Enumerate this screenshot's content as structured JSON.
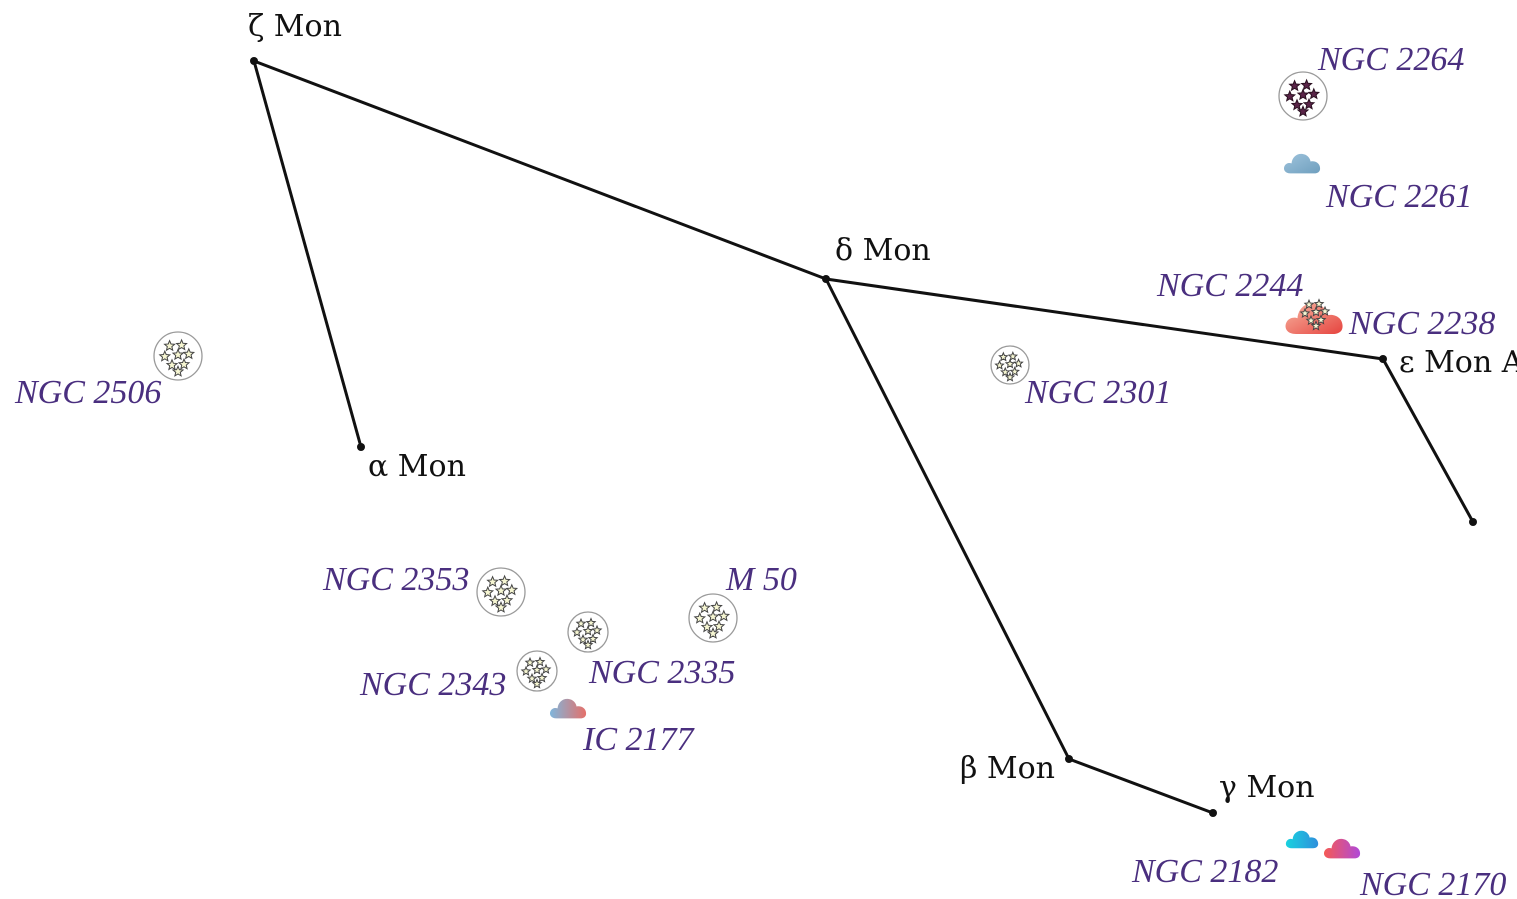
{
  "stars": [
    {
      "id": "zeta",
      "label": "ζ Mon"
    },
    {
      "id": "alpha",
      "label": "α Mon"
    },
    {
      "id": "delta",
      "label": "δ Mon"
    },
    {
      "id": "epsilon",
      "label": "ε Mon A"
    },
    {
      "id": "beta",
      "label": "β Mon"
    },
    {
      "id": "gamma",
      "label": "γ Mon"
    },
    {
      "id": "end",
      "label": ""
    }
  ],
  "deep_sky_objects": [
    {
      "id": "ngc2264",
      "label": "NGC 2264",
      "type": "open-cluster",
      "color": "#5a2448"
    },
    {
      "id": "ngc2261",
      "label": "NGC 2261",
      "type": "nebula",
      "colors": [
        "#8fb8d4",
        "#6fa0bf"
      ]
    },
    {
      "id": "ngc2244",
      "label": "NGC 2244",
      "type": "cluster-with-nebula"
    },
    {
      "id": "ngc2238",
      "label": "NGC 2238",
      "type": "nebula",
      "colors": [
        "#f4a08c",
        "#e84a4a"
      ]
    },
    {
      "id": "ngc2301",
      "label": "NGC 2301",
      "type": "open-cluster"
    },
    {
      "id": "ngc2506",
      "label": "NGC 2506",
      "type": "open-cluster"
    },
    {
      "id": "ngc2353",
      "label": "NGC 2353",
      "type": "open-cluster"
    },
    {
      "id": "m50",
      "label": "M 50",
      "type": "open-cluster"
    },
    {
      "id": "ngc2335",
      "label": "NGC 2335",
      "type": "open-cluster"
    },
    {
      "id": "ngc2343",
      "label": "NGC 2343",
      "type": "open-cluster"
    },
    {
      "id": "ic2177",
      "label": "IC 2177",
      "type": "nebula",
      "colors": [
        "#7fb2da",
        "#e4716a"
      ]
    },
    {
      "id": "ngc2182",
      "label": "NGC 2182",
      "type": "nebula",
      "colors": [
        "#1ec8e0",
        "#2a9bd8"
      ]
    },
    {
      "id": "ngc2170",
      "label": "NGC 2170",
      "type": "nebula",
      "colors": [
        "#f25c5c",
        "#b64cd6"
      ]
    }
  ],
  "colors": {
    "line": "#111111",
    "dso_label": "#4a2f7f",
    "star_label": "#111111",
    "cluster_star_fill": "#f6f6d2",
    "background": "#ffffff"
  }
}
